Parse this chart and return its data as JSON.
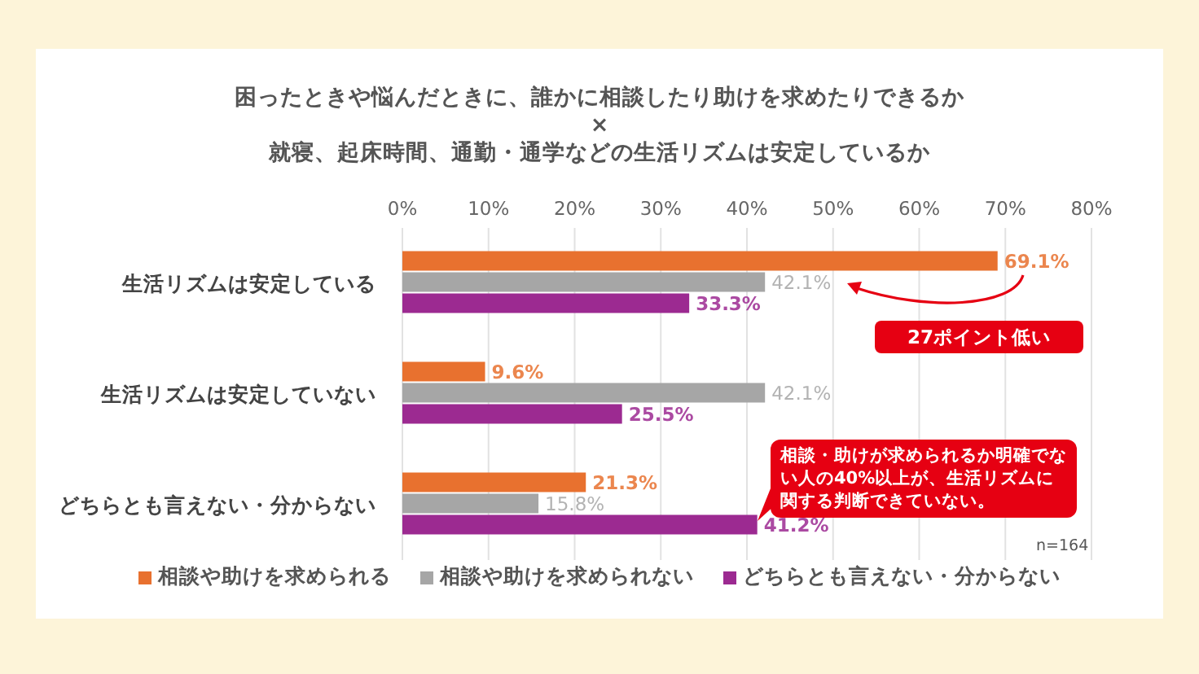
{
  "chart_data": {
    "type": "bar",
    "orientation": "horizontal",
    "title": "困ったときや悩んだときに、誰かに相談したり助けを求めたりできるか\n×\n就寝、起床時間、通勤・通学などの生活リズムは安定しているか",
    "categories": [
      "生活リズムは安定している",
      "生活リズムは安定していない",
      "どちらとも言えない・分からない"
    ],
    "series": [
      {
        "name": "相談や助けを求められる",
        "color": "#e8712f",
        "values": [
          69.1,
          9.6,
          21.3
        ],
        "value_labels": [
          "69.1%",
          "9.6%",
          "21.3%"
        ]
      },
      {
        "name": "相談や助けを求められない",
        "color": "#a6a6a6",
        "values": [
          42.1,
          42.1,
          15.8
        ],
        "value_labels": [
          "42.1%",
          "42.1%",
          "15.8%"
        ]
      },
      {
        "name": "どちらとも言えない・分からない",
        "color": "#9c2a91",
        "values": [
          33.3,
          25.5,
          41.2
        ],
        "value_labels": [
          "33.3%",
          "25.5%",
          "41.2%"
        ]
      }
    ],
    "xlim": [
      0,
      80
    ],
    "xticks": [
      {
        "value": 0,
        "label": "0%"
      },
      {
        "value": 10,
        "label": "10%"
      },
      {
        "value": 20,
        "label": "20%"
      },
      {
        "value": 30,
        "label": "30%"
      },
      {
        "value": 40,
        "label": "40%"
      },
      {
        "value": 50,
        "label": "50%"
      },
      {
        "value": 60,
        "label": "60%"
      },
      {
        "value": 70,
        "label": "70%"
      },
      {
        "value": 80,
        "label": "80%"
      }
    ],
    "grid": "x",
    "legend": "bottom",
    "annotations": [
      "27ポイント低い",
      "相談・助けが求められるか明確でない人の40%以上が、生活リズムに関する判断できていない。",
      "n=164"
    ]
  }
}
